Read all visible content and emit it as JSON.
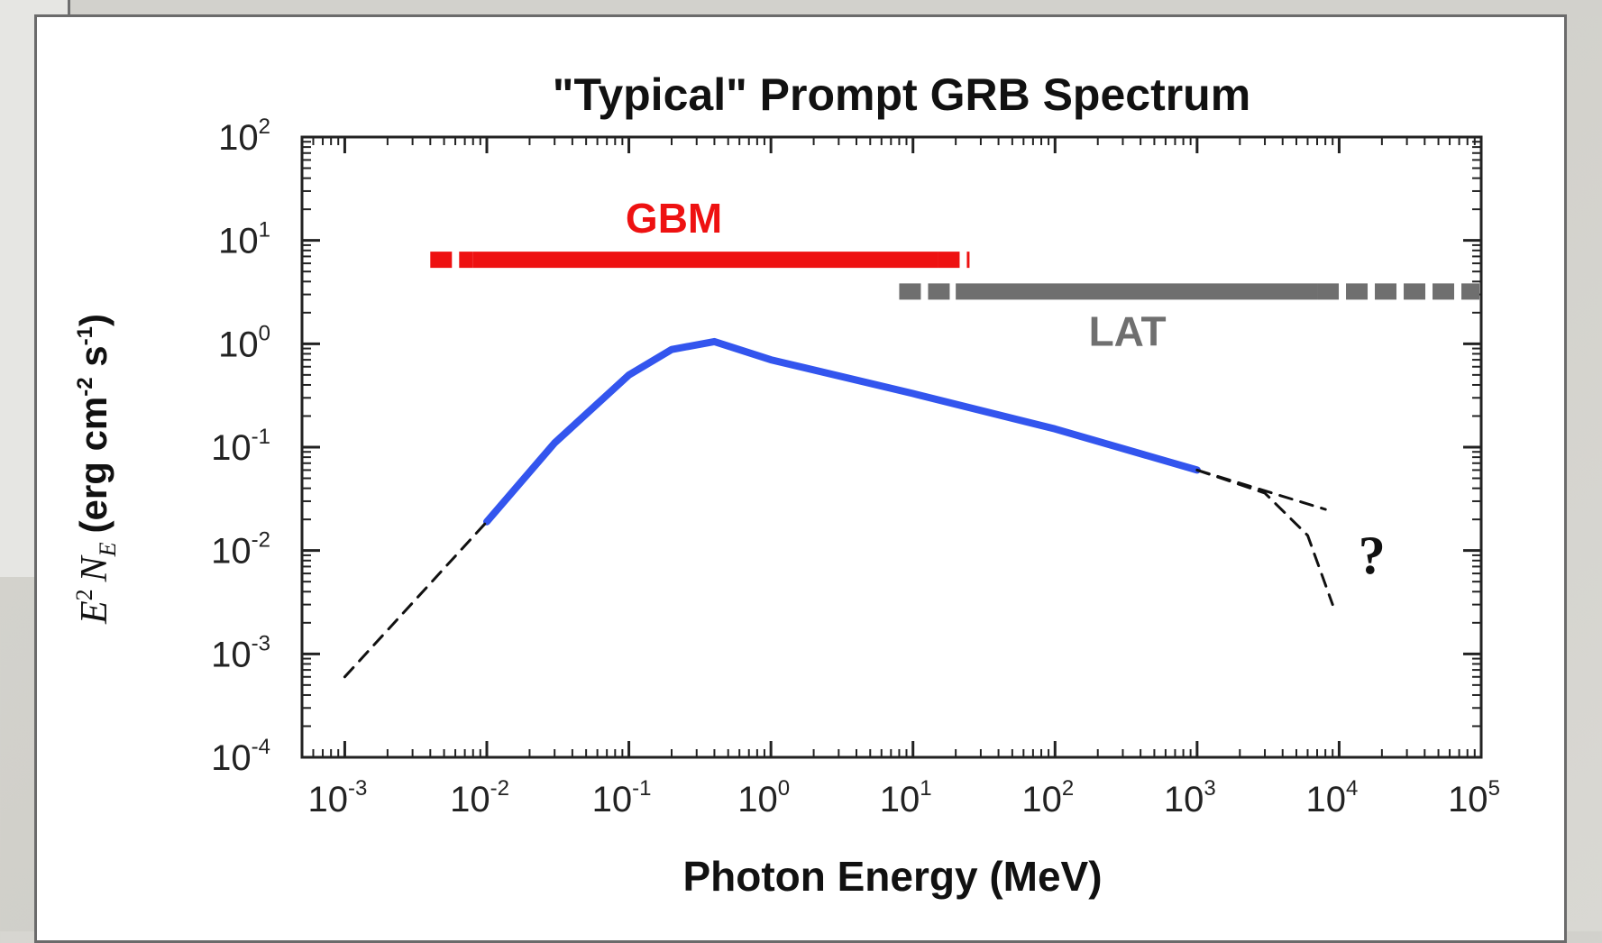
{
  "chart_data": {
    "type": "line",
    "title": "\"Typical\" Prompt GRB Spectrum",
    "xlabel": "Photon Energy (MeV)",
    "ylabel": {
      "math_E": "E",
      "math_E_exp": "2",
      "math_N": "N",
      "math_N_sub": "E",
      "units_prefix": "(erg cm",
      "units_exp1": "-2",
      "units_mid": " s",
      "units_exp2": "-1",
      "units_suffix": ")"
    },
    "x_scale": "log",
    "y_scale": "log",
    "xlim": [
      0.0005,
      100000
    ],
    "ylim": [
      0.0001,
      100
    ],
    "x_ticks": [
      {
        "base": "10",
        "exp": "-3",
        "value": 0.001
      },
      {
        "base": "10",
        "exp": "-2",
        "value": 0.01
      },
      {
        "base": "10",
        "exp": "-1",
        "value": 0.1
      },
      {
        "base": "10",
        "exp": "0",
        "value": 1
      },
      {
        "base": "10",
        "exp": "1",
        "value": 10
      },
      {
        "base": "10",
        "exp": "2",
        "value": 100
      },
      {
        "base": "10",
        "exp": "3",
        "value": 1000
      },
      {
        "base": "10",
        "exp": "4",
        "value": 10000
      },
      {
        "base": "10",
        "exp": "5",
        "value": 100000
      }
    ],
    "y_ticks": [
      {
        "base": "10",
        "exp": "2",
        "value": 100
      },
      {
        "base": "10",
        "exp": "1",
        "value": 10
      },
      {
        "base": "10",
        "exp": "0",
        "value": 1
      },
      {
        "base": "10",
        "exp": "-1",
        "value": 0.1
      },
      {
        "base": "10",
        "exp": "-2",
        "value": 0.01
      },
      {
        "base": "10",
        "exp": "-3",
        "value": 0.001
      },
      {
        "base": "10",
        "exp": "-4",
        "value": 0.0001
      }
    ],
    "series": [
      {
        "style": "solid",
        "color": "#3355ee",
        "points": [
          [
            0.01,
            0.019
          ],
          [
            0.03,
            0.11
          ],
          [
            0.1,
            0.5
          ],
          [
            0.2,
            0.88
          ],
          [
            0.4,
            1.05
          ],
          [
            1,
            0.7
          ],
          [
            10,
            0.33
          ],
          [
            100,
            0.15
          ],
          [
            1000,
            0.06
          ]
        ]
      },
      {
        "style": "dashed",
        "color": "#111111",
        "points": [
          [
            0.001,
            0.0006
          ],
          [
            0.01,
            0.019
          ]
        ]
      },
      {
        "style": "dashed",
        "color": "#111111",
        "points": [
          [
            1000,
            0.06
          ],
          [
            8000,
            0.025
          ]
        ]
      },
      {
        "style": "dashed",
        "color": "#111111",
        "points": [
          [
            1000,
            0.06
          ],
          [
            3000,
            0.036
          ],
          [
            6000,
            0.014
          ],
          [
            9000,
            0.003
          ]
        ]
      }
    ],
    "instrument_bands": [
      {
        "name": "GBM",
        "color": "#ee1111",
        "y": 6.5,
        "solid": [
          0.008,
          15
        ],
        "dashed_left": [
          0.004,
          0.008
        ],
        "dashed_right": [
          15,
          25
        ]
      },
      {
        "name": "LAT",
        "color": "#6f6f6f",
        "y": 3.2,
        "solid": [
          20,
          7000
        ],
        "dashed_left": [
          8,
          20
        ],
        "dashed_right": [
          7000,
          100000
        ]
      }
    ],
    "annotations": [
      {
        "text": "?",
        "x": 17000,
        "y": 0.009
      }
    ],
    "grid": false
  }
}
